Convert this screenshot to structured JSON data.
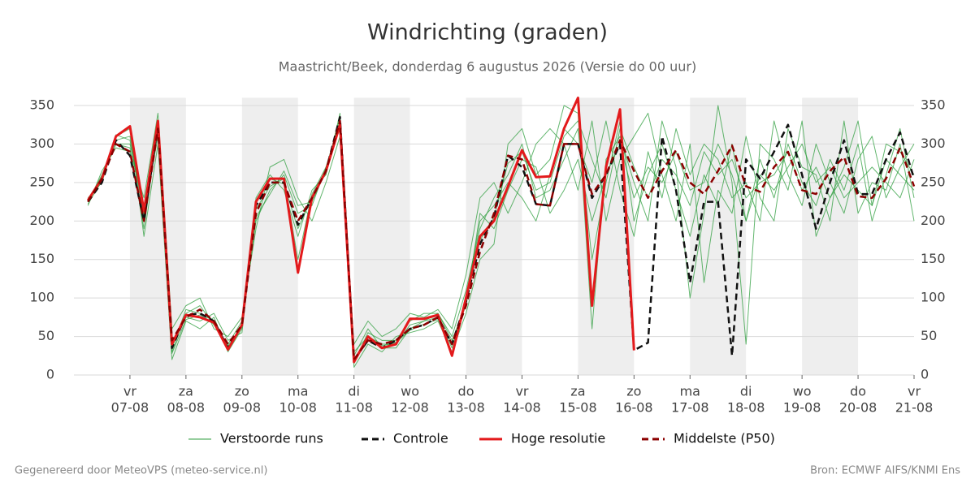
{
  "chart_data": {
    "type": "line",
    "title": "Windrichting (graden)",
    "subtitle": "Maastricht/Beek, donderdag  6 augustus 2026 (Versie do 00 uur)",
    "footer_left": "Gegenereerd door MeteoVPS (meteo-service.nl)",
    "footer_right": "Bron: ECMWF AIFS/KNMI Ens",
    "x": [
      "06-08 06:00",
      "06-08 12:00",
      "06-08 18:00",
      "07-08 00:00",
      "07-08 06:00",
      "07-08 12:00",
      "07-08 18:00",
      "08-08 00:00",
      "08-08 06:00",
      "08-08 12:00",
      "08-08 18:00",
      "09-08 00:00",
      "09-08 06:00",
      "09-08 12:00",
      "09-08 18:00",
      "10-08 00:00",
      "10-08 06:00",
      "10-08 12:00",
      "10-08 18:00",
      "11-08 00:00",
      "11-08 06:00",
      "11-08 12:00",
      "11-08 18:00",
      "12-08 00:00",
      "12-08 06:00",
      "12-08 12:00",
      "12-08 18:00",
      "13-08 00:00",
      "13-08 06:00",
      "13-08 12:00",
      "13-08 18:00",
      "14-08 00:00",
      "14-08 06:00",
      "14-08 12:00",
      "14-08 18:00",
      "15-08 00:00",
      "15-08 06:00",
      "15-08 12:00",
      "15-08 18:00",
      "16-08 00:00",
      "16-08 06:00",
      "16-08 12:00",
      "16-08 18:00",
      "17-08 00:00",
      "17-08 06:00",
      "17-08 12:00",
      "17-08 18:00",
      "18-08 00:00",
      "18-08 06:00",
      "18-08 12:00",
      "18-08 18:00",
      "19-08 00:00",
      "19-08 06:00",
      "19-08 12:00",
      "19-08 18:00",
      "20-08 00:00",
      "20-08 06:00",
      "20-08 12:00",
      "20-08 18:00",
      "21-08 00:00"
    ],
    "xlim": [
      "06-08 00:00",
      "21-08 00:00"
    ],
    "xticks": [
      "07-08",
      "08-08",
      "09-08",
      "10-08",
      "11-08",
      "12-08",
      "13-08",
      "14-08",
      "15-08",
      "16-08",
      "17-08",
      "18-08",
      "19-08",
      "20-08",
      "21-08"
    ],
    "xtick_weekdays": [
      "vr",
      "za",
      "zo",
      "ma",
      "di",
      "wo",
      "do",
      "vr",
      "za",
      "zo",
      "ma",
      "di",
      "wo",
      "do",
      "vr"
    ],
    "ylim": [
      0,
      360
    ],
    "yticks": [
      0,
      50,
      100,
      150,
      200,
      250,
      300,
      350
    ],
    "grid": true,
    "ensemble": {
      "name": "Verstoorde runs",
      "color": "#2e9e3e",
      "members": [
        [
          225,
          260,
          300,
          300,
          220,
          320,
          30,
          80,
          90,
          65,
          40,
          70,
          200,
          240,
          260,
          210,
          220,
          270,
          320,
          30,
          50,
          40,
          40,
          65,
          70,
          80,
          50,
          110,
          190,
          230,
          260,
          300,
          230,
          240,
          280,
          320,
          150,
          250,
          330,
          200,
          260,
          300,
          240,
          180,
          260,
          220,
          300,
          200,
          280,
          230,
          300,
          250,
          220,
          280,
          240,
          300,
          200,
          260,
          320,
          230
        ],
        [
          230,
          250,
          310,
          320,
          180,
          300,
          20,
          70,
          60,
          75,
          30,
          60,
          230,
          260,
          240,
          180,
          240,
          260,
          340,
          10,
          40,
          30,
          50,
          55,
          60,
          70,
          30,
          80,
          150,
          170,
          300,
          320,
          260,
          280,
          350,
          340,
          60,
          280,
          310,
          250,
          200,
          330,
          270,
          100,
          210,
          350,
          250,
          40,
          300,
          280,
          240,
          330,
          180,
          230,
          270,
          330,
          220,
          300,
          290,
          260
        ],
        [
          220,
          265,
          295,
          290,
          230,
          340,
          60,
          90,
          100,
          60,
          50,
          75,
          190,
          270,
          280,
          230,
          200,
          250,
          310,
          40,
          70,
          50,
          60,
          80,
          75,
          85,
          60,
          130,
          230,
          250,
          210,
          250,
          300,
          320,
          300,
          240,
          330,
          200,
          280,
          310,
          340,
          260,
          200,
          300,
          120,
          240,
          210,
          310,
          230,
          200,
          320,
          270,
          260,
          200,
          330,
          210,
          250,
          240,
          300,
          200
        ],
        [
          225,
          255,
          305,
          310,
          210,
          310,
          40,
          75,
          70,
          80,
          45,
          55,
          215,
          245,
          255,
          150,
          235,
          270,
          330,
          25,
          60,
          35,
          35,
          60,
          70,
          75,
          35,
          100,
          200,
          220,
          250,
          230,
          200,
          260,
          320,
          300,
          250,
          330,
          240,
          180,
          290,
          230,
          320,
          260,
          300,
          280,
          230,
          250,
          200,
          330,
          260,
          220,
          300,
          250,
          210,
          280,
          310,
          230,
          270,
          300
        ],
        [
          228,
          258,
          300,
          295,
          190,
          325,
          35,
          85,
          80,
          70,
          35,
          65,
          205,
          235,
          265,
          220,
          225,
          265,
          325,
          15,
          55,
          45,
          45,
          70,
          80,
          80,
          45,
          90,
          210,
          190,
          240,
          280,
          270,
          210,
          240,
          280,
          200,
          260,
          300,
          230,
          270,
          250,
          290,
          240,
          250,
          300,
          260,
          200,
          260,
          240,
          270,
          300,
          250,
          270,
          230,
          250,
          270,
          250,
          230,
          280
        ],
        [
          222,
          252,
          312,
          305,
          205,
          330,
          28,
          72,
          78,
          66,
          38,
          62,
          225,
          255,
          248,
          190,
          232,
          262,
          336,
          18,
          48,
          38,
          42,
          58,
          66,
          72,
          42,
          95,
          175,
          205,
          275,
          290,
          240,
          250,
          310,
          330,
          280,
          230,
          320,
          270,
          230,
          280,
          260,
          220,
          290,
          260,
          280,
          230,
          250,
          260,
          290,
          240,
          270,
          230,
          260,
          240,
          220,
          280,
          260,
          240
        ]
      ]
    },
    "series": [
      {
        "name": "Controle",
        "color": "#111111",
        "style": "dashed",
        "values": [
          225,
          250,
          305,
          285,
          200,
          325,
          35,
          78,
          80,
          70,
          35,
          65,
          220,
          250,
          250,
          195,
          230,
          265,
          335,
          20,
          45,
          35,
          45,
          60,
          65,
          75,
          40,
          95,
          170,
          205,
          285,
          270,
          222,
          220,
          300,
          300,
          230,
          260,
          300,
          32,
          42,
          310,
          240,
          120,
          225,
          225,
          25,
          280,
          255,
          290,
          325,
          260,
          190,
          250,
          305,
          235,
          235,
          280,
          315,
          255
        ]
      },
      {
        "name": "Hoge resolutie",
        "color": "#e31a1c",
        "style": "solid",
        "values": [
          227,
          255,
          310,
          323,
          213,
          330,
          40,
          78,
          75,
          68,
          33,
          65,
          225,
          255,
          255,
          133,
          230,
          265,
          325,
          17,
          50,
          35,
          40,
          73,
          73,
          78,
          25,
          100,
          180,
          200,
          245,
          292,
          257,
          258,
          320,
          360,
          90,
          270,
          345,
          32,
          null,
          null,
          null,
          null,
          null,
          null,
          null,
          null,
          null,
          null,
          null,
          null,
          null,
          null,
          null,
          null,
          null,
          null,
          null,
          null
        ]
      },
      {
        "name": "Middelste (P50)",
        "color": "#8b0000",
        "style": "dashed",
        "values": [
          225,
          255,
          300,
          290,
          200,
          320,
          45,
          75,
          85,
          70,
          40,
          65,
          210,
          250,
          250,
          200,
          230,
          265,
          330,
          20,
          45,
          40,
          45,
          60,
          65,
          75,
          40,
          90,
          160,
          210,
          285,
          280,
          222,
          220,
          300,
          300,
          235,
          260,
          305,
          265,
          230,
          265,
          292,
          250,
          235,
          265,
          298,
          245,
          238,
          270,
          290,
          240,
          235,
          265,
          283,
          232,
          230,
          255,
          295,
          245
        ]
      }
    ]
  }
}
